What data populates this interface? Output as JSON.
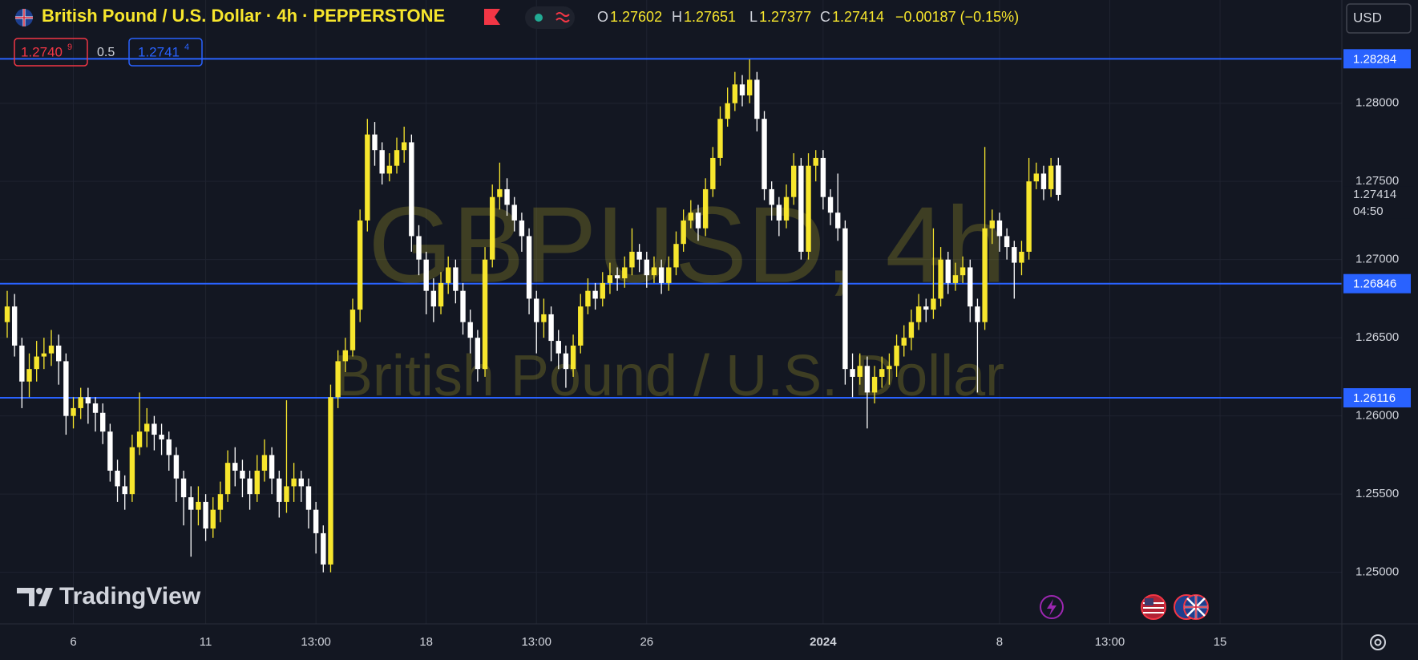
{
  "header": {
    "title": "British Pound / U.S. Dollar · 4h · PEPPERSTONE",
    "ohlc": [
      {
        "key": "O",
        "value": "1.27602"
      },
      {
        "key": "H",
        "value": "1.27651"
      },
      {
        "key": "L",
        "value": "1.27377"
      },
      {
        "key": "C",
        "value": "1.27414"
      }
    ],
    "change": "−0.00187 (−0.15%)",
    "bid": {
      "main": "1.2740",
      "sup": "9"
    },
    "spread": "0.5",
    "ask": {
      "main": "1.2741",
      "sup": "4"
    },
    "currency": "USD"
  },
  "branding": "TradingView",
  "chart_data": {
    "type": "candlestick",
    "categories": [
      null,
      null,
      null,
      null,
      null,
      null,
      null,
      null,
      null,
      "6",
      null,
      null,
      null,
      null,
      null,
      null,
      null,
      null,
      null,
      null,
      null,
      null,
      null,
      null,
      null,
      null,
      null,
      "11",
      null,
      null,
      null,
      null,
      null,
      null,
      null,
      null,
      null,
      null,
      null,
      null,
      null,
      null,
      "13:00",
      null,
      null,
      null,
      null,
      null,
      null,
      null,
      null,
      null,
      null,
      null,
      null,
      null,
      null,
      "18",
      null,
      null,
      null,
      null,
      null,
      null,
      null,
      null,
      null,
      null,
      null,
      null,
      null,
      null,
      "13:00",
      null,
      null,
      null,
      null,
      null,
      null,
      null,
      null,
      null,
      null,
      null,
      null,
      null,
      null,
      "26",
      null,
      null,
      null,
      null,
      null,
      null,
      null,
      null,
      null,
      null,
      null,
      null,
      null,
      null,
      null,
      null,
      null,
      null,
      null,
      null,
      null,
      null,
      null,
      "2024",
      null,
      null,
      null,
      null,
      null,
      null,
      null,
      null,
      null,
      null,
      null,
      null,
      null,
      null,
      null,
      null,
      null,
      null,
      null,
      null,
      null,
      null,
      null,
      "8",
      null,
      null,
      null,
      null,
      null,
      null,
      null,
      null,
      null,
      null,
      null,
      null,
      null,
      null,
      "13:00",
      null,
      null,
      null,
      null,
      null,
      null,
      null,
      null,
      null,
      null,
      null,
      null,
      null,
      null,
      "15"
    ],
    "bold_categories": [
      "2024"
    ],
    "open": [
      1.266,
      1.267,
      1.2645,
      1.2622,
      1.263,
      1.2638,
      1.264,
      1.2645,
      1.2635,
      1.26,
      1.2605,
      1.2612,
      1.2608,
      1.2602,
      1.259,
      1.2565,
      1.2555,
      1.255,
      1.258,
      1.259,
      1.2595,
      1.2588,
      1.2585,
      1.2575,
      1.256,
      1.2548,
      1.254,
      1.2545,
      1.2528,
      1.254,
      1.255,
      1.257,
      1.2565,
      1.256,
      1.255,
      1.2565,
      1.2575,
      1.256,
      1.2545,
      1.2555,
      1.256,
      1.2555,
      1.254,
      1.2525,
      1.2505,
      1.2612,
      1.2635,
      1.2642,
      1.2668,
      1.2725,
      1.278,
      1.277,
      1.2755,
      1.276,
      1.277,
      1.2775,
      1.2715,
      1.27,
      1.268,
      1.267,
      1.2685,
      1.2695,
      1.268,
      1.266,
      1.265,
      1.263,
      1.27,
      1.274,
      1.2745,
      1.2735,
      1.2725,
      1.2715,
      1.2675,
      1.266,
      1.2665,
      1.2648,
      1.264,
      1.263,
      1.2645,
      1.267,
      1.268,
      1.2675,
      1.2685,
      1.269,
      1.2688,
      1.2695,
      1.2705,
      1.27,
      1.269,
      1.2695,
      1.2685,
      1.2695,
      1.271,
      1.2725,
      1.273,
      1.272,
      1.2745,
      1.2765,
      1.279,
      1.28,
      1.2812,
      1.2805,
      1.2815,
      1.279,
      1.2745,
      1.2735,
      1.2725,
      1.274,
      1.276,
      1.2705,
      1.276,
      1.2765,
      1.274,
      1.273,
      1.272,
      1.263,
      1.2625,
      1.2632,
      1.2615,
      1.2625,
      1.263,
      1.2632,
      1.2645,
      1.265,
      1.266,
      1.267,
      1.2668,
      1.2675,
      1.27,
      1.2685,
      1.269,
      1.2695,
      1.267,
      1.266,
      1.272,
      1.2725,
      1.2715,
      1.2708,
      1.2698,
      1.2705,
      1.275,
      1.2755,
      1.2745,
      1.27602,
      null,
      null,
      null,
      null,
      null,
      null,
      null,
      null,
      null,
      null,
      null,
      null,
      null,
      null,
      null,
      null,
      null,
      null,
      null,
      null,
      null,
      null
    ],
    "high": [
      1.268,
      1.2678,
      1.265,
      1.264,
      1.2648,
      1.265,
      1.2655,
      1.2652,
      1.264,
      1.2612,
      1.2618,
      1.2618,
      1.2612,
      1.2608,
      1.2595,
      1.2572,
      1.2562,
      1.2588,
      1.2615,
      1.2605,
      1.26,
      1.2595,
      1.259,
      1.258,
      1.2565,
      1.2555,
      1.2555,
      1.255,
      1.2548,
      1.2558,
      1.2578,
      1.258,
      1.2572,
      1.2565,
      1.2575,
      1.2585,
      1.258,
      1.2565,
      1.261,
      1.257,
      1.2565,
      1.256,
      1.2545,
      1.253,
      1.262,
      1.2642,
      1.265,
      1.2675,
      1.2732,
      1.279,
      1.2788,
      1.2775,
      1.2768,
      1.2778,
      1.2785,
      1.278,
      1.2722,
      1.2705,
      1.2688,
      1.2692,
      1.2702,
      1.27,
      1.2685,
      1.2668,
      1.2655,
      1.2708,
      1.2748,
      1.2762,
      1.2752,
      1.274,
      1.273,
      1.272,
      1.268,
      1.2675,
      1.267,
      1.2655,
      1.2645,
      1.2652,
      1.2678,
      1.2688,
      1.2685,
      1.2692,
      1.2698,
      1.2695,
      1.2702,
      1.272,
      1.271,
      1.2705,
      1.2702,
      1.27,
      1.2702,
      1.2718,
      1.2732,
      1.2738,
      1.2735,
      1.2752,
      1.2772,
      1.2798,
      1.281,
      1.282,
      1.2818,
      1.2828,
      1.282,
      1.2795,
      1.275,
      1.274,
      1.2748,
      1.2768,
      1.2765,
      1.2768,
      1.277,
      1.277,
      1.2745,
      1.2755,
      1.2725,
      1.264,
      1.264,
      1.2638,
      1.2632,
      1.2638,
      1.264,
      1.2652,
      1.2658,
      1.2668,
      1.2678,
      1.2675,
      1.272,
      1.2708,
      1.2705,
      1.2698,
      1.2702,
      1.27,
      1.2675,
      1.2772,
      1.2732,
      1.273,
      1.272,
      1.2712,
      1.2712,
      1.2765,
      1.2762,
      1.276,
      1.2765,
      1.27651,
      null,
      null,
      null,
      null,
      null,
      null,
      null,
      null,
      null,
      null,
      null,
      null,
      null,
      null,
      null,
      null,
      null,
      null,
      null,
      null,
      null,
      null
    ],
    "low": [
      1.265,
      1.2638,
      1.2605,
      1.2612,
      1.2622,
      1.263,
      1.2632,
      1.262,
      1.2588,
      1.2592,
      1.2598,
      1.2595,
      1.259,
      1.2582,
      1.2558,
      1.2545,
      1.254,
      1.2545,
      1.2575,
      1.258,
      1.2578,
      1.2575,
      1.2565,
      1.2545,
      1.253,
      1.251,
      1.253,
      1.252,
      1.2522,
      1.2532,
      1.2545,
      1.2555,
      1.2548,
      1.254,
      1.2545,
      1.2558,
      1.255,
      1.2535,
      1.2538,
      1.2545,
      1.2545,
      1.2528,
      1.2512,
      1.25,
      1.25,
      1.2605,
      1.2628,
      1.2638,
      1.266,
      1.2718,
      1.276,
      1.2748,
      1.275,
      1.2755,
      1.2762,
      1.2705,
      1.269,
      1.2665,
      1.266,
      1.2665,
      1.2678,
      1.2672,
      1.2652,
      1.264,
      1.2622,
      1.2625,
      1.2695,
      1.2732,
      1.2728,
      1.2718,
      1.2705,
      1.2665,
      1.264,
      1.265,
      1.2635,
      1.263,
      1.2618,
      1.2625,
      1.264,
      1.2665,
      1.2668,
      1.267,
      1.2678,
      1.268,
      1.2682,
      1.269,
      1.2692,
      1.2682,
      1.2685,
      1.2678,
      1.268,
      1.269,
      1.2705,
      1.272,
      1.2712,
      1.2715,
      1.274,
      1.276,
      1.2785,
      1.2795,
      1.2798,
      1.28,
      1.2782,
      1.2738,
      1.2725,
      1.2715,
      1.272,
      1.2735,
      1.27,
      1.27,
      1.275,
      1.2732,
      1.2722,
      1.2712,
      1.262,
      1.2612,
      1.262,
      1.2592,
      1.2608,
      1.2618,
      1.262,
      1.2625,
      1.2638,
      1.2642,
      1.2655,
      1.266,
      1.2662,
      1.267,
      1.2678,
      1.268,
      1.2685,
      1.266,
      1.2615,
      1.2655,
      1.271,
      1.2705,
      1.27,
      1.2675,
      1.269,
      1.27,
      1.2745,
      1.2738,
      1.274,
      1.27377,
      null,
      null,
      null,
      null,
      null,
      null,
      null,
      null,
      null,
      null,
      null,
      null,
      null,
      null,
      null,
      null,
      null,
      null,
      null,
      null,
      null,
      null
    ],
    "close": [
      1.267,
      1.2645,
      1.2622,
      1.263,
      1.2638,
      1.264,
      1.2645,
      1.2635,
      1.26,
      1.2605,
      1.2612,
      1.2608,
      1.2602,
      1.259,
      1.2565,
      1.2555,
      1.255,
      1.258,
      1.259,
      1.2595,
      1.2588,
      1.2585,
      1.2575,
      1.256,
      1.2548,
      1.254,
      1.2545,
      1.2528,
      1.254,
      1.255,
      1.257,
      1.2565,
      1.256,
      1.255,
      1.2565,
      1.2575,
      1.256,
      1.2545,
      1.2555,
      1.256,
      1.2555,
      1.254,
      1.2525,
      1.2505,
      1.2612,
      1.2635,
      1.2642,
      1.2668,
      1.2725,
      1.278,
      1.277,
      1.2755,
      1.276,
      1.277,
      1.2775,
      1.2715,
      1.27,
      1.268,
      1.267,
      1.2685,
      1.2695,
      1.268,
      1.266,
      1.265,
      1.263,
      1.27,
      1.274,
      1.2745,
      1.2735,
      1.2725,
      1.2715,
      1.2675,
      1.266,
      1.2665,
      1.2648,
      1.264,
      1.263,
      1.2645,
      1.267,
      1.268,
      1.2675,
      1.2685,
      1.269,
      1.2688,
      1.2695,
      1.2705,
      1.27,
      1.269,
      1.2695,
      1.2685,
      1.2695,
      1.271,
      1.2725,
      1.273,
      1.272,
      1.2745,
      1.2765,
      1.279,
      1.28,
      1.2812,
      1.2805,
      1.2815,
      1.279,
      1.2745,
      1.2735,
      1.2725,
      1.274,
      1.276,
      1.2705,
      1.276,
      1.2765,
      1.274,
      1.273,
      1.272,
      1.263,
      1.2625,
      1.2632,
      1.2615,
      1.2625,
      1.263,
      1.2632,
      1.2645,
      1.265,
      1.266,
      1.267,
      1.2668,
      1.2675,
      1.27,
      1.2685,
      1.269,
      1.2695,
      1.267,
      1.266,
      1.272,
      1.2725,
      1.2715,
      1.2708,
      1.2698,
      1.2705,
      1.275,
      1.2755,
      1.2745,
      1.276,
      1.27414,
      null,
      null,
      null,
      null,
      null,
      null,
      null,
      null,
      null,
      null,
      null,
      null,
      null,
      null,
      null,
      null,
      null,
      null,
      null,
      null,
      null,
      null
    ],
    "up_color": "#f7e62d",
    "down_color": "#ffffff",
    "ylim": [
      1.2467,
      1.2866
    ],
    "yticks": [
      {
        "value": 1.25,
        "label": "1.25000"
      },
      {
        "value": 1.255,
        "label": "1.25500"
      },
      {
        "value": 1.26,
        "label": "1.26000"
      },
      {
        "value": 1.265,
        "label": "1.26500"
      },
      {
        "value": 1.27,
        "label": "1.27000"
      },
      {
        "value": 1.275,
        "label": "1.27500"
      },
      {
        "value": 1.28,
        "label": "1.28000"
      }
    ],
    "grid": true,
    "hlines": [
      1.28284,
      1.26846,
      1.26116
    ],
    "hline_color": "#2962ff",
    "last_price": 1.27414,
    "countdown": "04:50",
    "watermark": {
      "symbol": "GBPUSD, 4h",
      "name": "British Pound / U.S. Dollar"
    }
  }
}
